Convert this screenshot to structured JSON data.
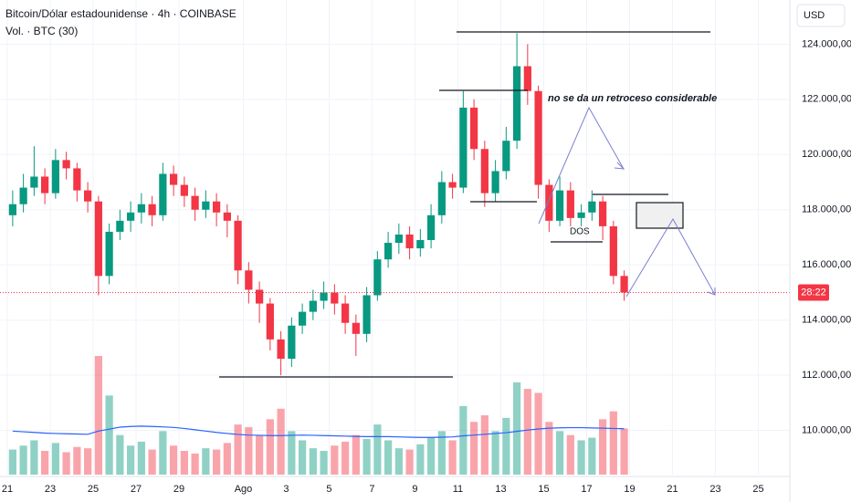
{
  "chart_data": {
    "type": "candlestick",
    "title": "Bitcoin/Dólar estadounidense · 4h · COINBASE",
    "subtitle": "Vol. · BTC (30)",
    "currency": "USD",
    "countdown": "28:22",
    "up_color": "#089981",
    "down_color": "#f23645",
    "ma_color": "#2962ff",
    "x": [
      0.25,
      0.75,
      1.25,
      1.75,
      2.25,
      2.75,
      3.25,
      3.75,
      4.25,
      4.75,
      5.25,
      5.75,
      6.25,
      6.75,
      7.25,
      7.75,
      8.25,
      8.75,
      9.25,
      9.75,
      10.25,
      10.75,
      11.25,
      11.75,
      12.25,
      12.75,
      13.25,
      13.75,
      14.25,
      14.75,
      15.25,
      15.75,
      16.25,
      16.75,
      17.25,
      17.75,
      18.25,
      18.75,
      19.25,
      19.75,
      20.25,
      20.75,
      21.25,
      21.75,
      22.25,
      22.75,
      23.25,
      23.75,
      24.25,
      24.75,
      25.25,
      25.75,
      26.25,
      26.75,
      27.25,
      27.75,
      28.25,
      28.75
    ],
    "open": [
      117800,
      118200,
      118800,
      119200,
      118600,
      119800,
      119500,
      118700,
      118300,
      115600,
      117200,
      117600,
      117900,
      118200,
      117800,
      119300,
      118900,
      118500,
      118000,
      118300,
      117900,
      117600,
      115800,
      115100,
      114600,
      113300,
      112600,
      113800,
      114300,
      114700,
      115000,
      114600,
      113900,
      113500,
      114900,
      116200,
      116800,
      117100,
      116600,
      116900,
      117800,
      119000,
      118800,
      121700,
      120200,
      118600,
      119400,
      120500,
      123200,
      122300,
      118900,
      117600,
      118700,
      117700,
      117900,
      118300,
      117400,
      115600
    ],
    "high": [
      118700,
      119300,
      120300,
      119500,
      120200,
      120100,
      119700,
      119000,
      118500,
      117500,
      118000,
      118300,
      118600,
      118500,
      119700,
      119600,
      119200,
      118800,
      118700,
      118600,
      118200,
      117800,
      116100,
      115400,
      114800,
      113600,
      114100,
      114600,
      115100,
      115400,
      115300,
      114900,
      114200,
      115200,
      116500,
      117200,
      117500,
      117400,
      117300,
      118200,
      119400,
      119300,
      122300,
      122000,
      120500,
      119800,
      121000,
      124400,
      124000,
      122500,
      119100,
      119200,
      119000,
      118200,
      118700,
      118500,
      117600,
      115800
    ],
    "low": [
      117400,
      117900,
      118500,
      118200,
      118400,
      119100,
      118300,
      117900,
      114900,
      115300,
      116900,
      117200,
      117500,
      117400,
      117600,
      118500,
      118100,
      117600,
      117700,
      117400,
      117000,
      115300,
      114600,
      113900,
      112900,
      112000,
      112300,
      113500,
      114000,
      114400,
      114200,
      113500,
      112700,
      113200,
      114700,
      115900,
      116400,
      116200,
      116300,
      116600,
      117500,
      118400,
      118600,
      119800,
      118100,
      118300,
      119100,
      120200,
      121800,
      118400,
      117200,
      117400,
      117400,
      117400,
      117600,
      116900,
      115300,
      114700
    ],
    "close": [
      118200,
      118800,
      119200,
      118600,
      119800,
      119500,
      118700,
      118300,
      115600,
      117200,
      117600,
      117900,
      118200,
      117800,
      119300,
      118900,
      118500,
      118000,
      118300,
      117900,
      117600,
      115800,
      115100,
      114600,
      113300,
      112600,
      113800,
      114300,
      114700,
      115000,
      114600,
      113900,
      113500,
      114900,
      116200,
      116800,
      117100,
      116600,
      116900,
      117800,
      119000,
      118800,
      121700,
      120200,
      118600,
      119400,
      120500,
      123200,
      122300,
      118900,
      117600,
      118700,
      117700,
      117900,
      118300,
      117400,
      115600,
      115000
    ],
    "volume": [
      190,
      220,
      260,
      180,
      240,
      170,
      210,
      200,
      900,
      600,
      300,
      220,
      250,
      190,
      330,
      220,
      180,
      160,
      200,
      190,
      240,
      380,
      360,
      300,
      420,
      500,
      330,
      260,
      200,
      180,
      220,
      250,
      300,
      270,
      380,
      260,
      200,
      190,
      230,
      280,
      330,
      260,
      520,
      400,
      450,
      330,
      430,
      700,
      650,
      620,
      400,
      330,
      300,
      260,
      280,
      420,
      480,
      350
    ],
    "volume_ma": [
      330,
      325,
      320,
      315,
      312,
      310,
      308,
      306,
      330,
      345,
      360,
      365,
      368,
      365,
      362,
      358,
      350,
      340,
      330,
      320,
      312,
      305,
      300,
      298,
      296,
      296,
      298,
      300,
      298,
      296,
      294,
      292,
      290,
      288,
      288,
      288,
      286,
      284,
      282,
      282,
      284,
      286,
      294,
      300,
      306,
      312,
      318,
      328,
      338,
      346,
      352,
      355,
      356,
      356,
      354,
      352,
      350,
      348
    ],
    "xlim": [
      -0.34,
      36.47
    ],
    "ylim": [
      108400,
      125600
    ],
    "xticks": [
      {
        "value": 0,
        "label": "21"
      },
      {
        "value": 2,
        "label": "23"
      },
      {
        "value": 4,
        "label": "25"
      },
      {
        "value": 6,
        "label": "27"
      },
      {
        "value": 8,
        "label": "29"
      },
      {
        "value": 11,
        "label": "Ago"
      },
      {
        "value": 13,
        "label": "3"
      },
      {
        "value": 15,
        "label": "5"
      },
      {
        "value": 17,
        "label": "7"
      },
      {
        "value": 19,
        "label": "9"
      },
      {
        "value": 21,
        "label": "11"
      },
      {
        "value": 23,
        "label": "13"
      },
      {
        "value": 25,
        "label": "15"
      },
      {
        "value": 27,
        "label": "17"
      },
      {
        "value": 29,
        "label": "19"
      },
      {
        "value": 31,
        "label": "21"
      },
      {
        "value": 33,
        "label": "23"
      },
      {
        "value": 35,
        "label": "25"
      }
    ],
    "yticks": [
      {
        "value": 124000,
        "label": "124.000,00"
      },
      {
        "value": 122000,
        "label": "122.000,00"
      },
      {
        "value": 120000,
        "label": "120.000,00"
      },
      {
        "value": 118000,
        "label": "118.000,00"
      },
      {
        "value": 116000,
        "label": "116.000,00"
      },
      {
        "value": 114000,
        "label": "114.000,00"
      },
      {
        "value": 112000,
        "label": "112.000,00"
      },
      {
        "value": 110000,
        "label": "110.000,00"
      }
    ],
    "annotations": [
      "no se da un retroceso considerable",
      "DOS"
    ]
  }
}
